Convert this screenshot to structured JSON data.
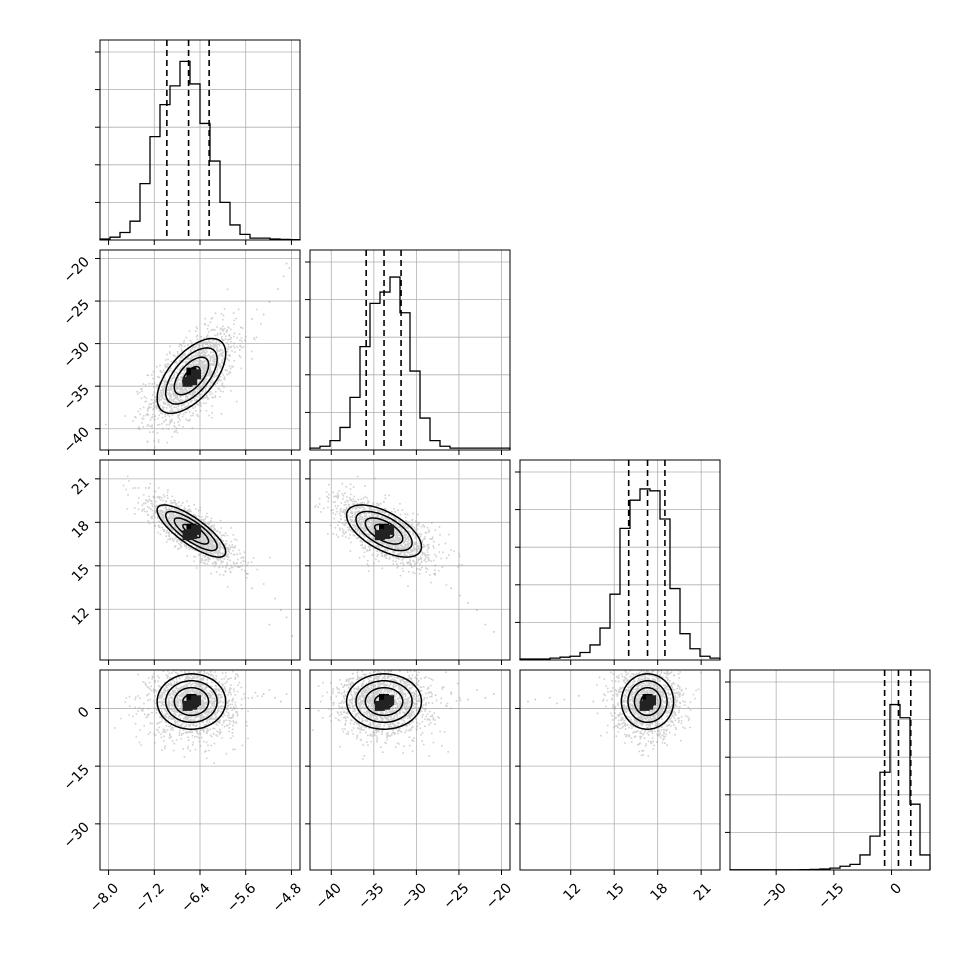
{
  "chart_data": {
    "type": "corner",
    "parameters": [
      {
        "range": [
          -8.15,
          -4.65
        ],
        "ticks": [
          -8.0,
          -7.2,
          -6.4,
          -5.6,
          -4.8
        ],
        "tick_labels": [
          "−8.0",
          "−7.2",
          "−6.4",
          "−5.6",
          "−4.8"
        ],
        "quantiles": [
          -6.98,
          -6.6,
          -6.24
        ],
        "hist_bins": [
          -8.15,
          -7.975,
          -7.8,
          -7.625,
          -7.45,
          -7.275,
          -7.1,
          -6.925,
          -6.75,
          -6.575,
          -6.4,
          -6.225,
          -6.05,
          -5.875,
          -5.7,
          -5.525,
          -5.35,
          -5.175,
          -5.0,
          -4.825,
          -4.65
        ],
        "hist_counts": [
          0.5,
          1.5,
          4,
          10,
          30,
          55,
          72,
          82,
          95,
          83,
          62,
          42,
          20,
          8,
          3,
          1,
          1,
          0.5,
          0.3,
          0.2
        ],
        "hist_max": 100
      },
      {
        "range": [
          -42.5,
          -19
        ],
        "ticks": [
          -40,
          -35,
          -30,
          -25,
          -20
        ],
        "tick_labels": [
          "−40",
          "−35",
          "−30",
          "−25",
          "−20"
        ],
        "quantiles": [
          -35.9,
          -33.8,
          -31.8
        ],
        "hist_bins": [
          -42.5,
          -41.325,
          -40.15,
          -38.975,
          -37.8,
          -36.625,
          -35.45,
          -34.275,
          -33.1,
          -31.925,
          -30.75,
          -29.575,
          -28.4,
          -27.225,
          -26.05,
          -24.875,
          -23.7,
          -22.525,
          -21.35,
          -20.175,
          -19.0
        ],
        "hist_counts": [
          1,
          2,
          5,
          12,
          28,
          55,
          78,
          84,
          92,
          73,
          42,
          17,
          5,
          2,
          1,
          1,
          1,
          1,
          1,
          1
        ],
        "hist_max": 100
      },
      {
        "range": [
          8.5,
          22.3
        ],
        "ticks": [
          12,
          15,
          18,
          21
        ],
        "tick_labels": [
          "12",
          "15",
          "18",
          "21"
        ],
        "quantiles": [
          16,
          17.3,
          18.5
        ],
        "hist_bins": [
          8.5,
          9.19,
          9.88,
          10.57,
          11.26,
          11.95,
          12.64,
          13.33,
          14.02,
          14.71,
          15.4,
          16.09,
          16.78,
          17.47,
          18.16,
          18.85,
          19.54,
          20.23,
          20.92,
          21.61,
          22.3
        ],
        "hist_counts": [
          0.5,
          0.5,
          0.5,
          1,
          1.5,
          2,
          4,
          8,
          17,
          35,
          70,
          85,
          91,
          90,
          75,
          38,
          14,
          6,
          2,
          1
        ],
        "hist_max": 100
      },
      {
        "range": [
          -42,
          10
        ],
        "ticks": [
          -30,
          -15,
          0
        ],
        "tick_labels": [
          "−30",
          "−15",
          "0"
        ],
        "quantiles": [
          -1.8,
          1.8,
          5
        ],
        "hist_bins": [
          -42,
          -39.4,
          -36.8,
          -34.2,
          -31.6,
          -29,
          -26.4,
          -23.8,
          -21.2,
          -18.6,
          -16,
          -13.4,
          -10.8,
          -8.2,
          -5.6,
          -3,
          -0.4,
          2.2,
          4.8,
          7.4,
          10
        ],
        "hist_counts": [
          0.1,
          0.1,
          0.1,
          0.1,
          0.1,
          0.1,
          0.1,
          0.2,
          0.3,
          0.5,
          1,
          2,
          3,
          8,
          18,
          52,
          88,
          81,
          35,
          8
        ],
        "hist_max": 100
      }
    ],
    "pairs": [
      {
        "row": 1,
        "col": 0,
        "center": [
          -6.55,
          -33.8
        ],
        "sigma": [
          0.3,
          2.2
        ],
        "rho": 0.6,
        "n_points": 1600,
        "outliers": [
          [
            -5.9,
            -29
          ],
          [
            -5.5,
            -27
          ],
          [
            -5.2,
            -25
          ],
          [
            -5.05,
            -23.5
          ],
          [
            -4.95,
            -22
          ],
          [
            -4.85,
            -21
          ],
          [
            -5.3,
            -26.5
          ],
          [
            -5.7,
            -28
          ],
          [
            -6,
            -29.5
          ],
          [
            -4.9,
            -20.5
          ]
        ]
      },
      {
        "row": 2,
        "col": 0,
        "center": [
          -6.55,
          17.4
        ],
        "sigma": [
          0.3,
          0.9
        ],
        "rho": -0.8,
        "n_points": 1600,
        "outliers": [
          [
            -5.6,
            14.5
          ],
          [
            -5.3,
            13.8
          ],
          [
            -5.1,
            12.8
          ],
          [
            -4.9,
            11.5
          ],
          [
            -4.8,
            10.2
          ],
          [
            -5,
            12
          ],
          [
            -5.5,
            13.5
          ],
          [
            -5.2,
            11
          ]
        ]
      },
      {
        "row": 3,
        "col": 0,
        "center": [
          -6.55,
          1.8
        ],
        "sigma": [
          0.3,
          3.6
        ],
        "rho": 0.0,
        "n_points": 1600,
        "outliers": [
          [
            -5.3,
            4
          ],
          [
            -5.1,
            3
          ],
          [
            -5,
            2
          ],
          [
            -4.9,
            4
          ],
          [
            -5.2,
            5
          ],
          [
            -5.5,
            3
          ]
        ]
      },
      {
        "row": 2,
        "col": 1,
        "center": [
          -33.8,
          17.4
        ],
        "sigma": [
          2.2,
          0.9
        ],
        "rho": -0.6,
        "n_points": 1600,
        "outliers": [
          [
            -28,
            14.5
          ],
          [
            -26,
            13.5
          ],
          [
            -24,
            12.5
          ],
          [
            -22,
            11
          ],
          [
            -21,
            10.5
          ],
          [
            -23,
            12
          ],
          [
            -25,
            13
          ]
        ]
      },
      {
        "row": 3,
        "col": 1,
        "center": [
          -33.8,
          1.8
        ],
        "sigma": [
          2.2,
          3.6
        ],
        "rho": 0.0,
        "n_points": 1600,
        "outliers": [
          [
            -26,
            4
          ],
          [
            -25,
            3
          ],
          [
            -24,
            2.5
          ],
          [
            -22,
            3
          ],
          [
            -21,
            4
          ],
          [
            -23,
            5
          ]
        ]
      },
      {
        "row": 3,
        "col": 2,
        "center": [
          17.3,
          1.8
        ],
        "sigma": [
          0.9,
          3.6
        ],
        "rho": 0.0,
        "n_points": 1600,
        "outliers": [
          [
            9.5,
            2.5
          ],
          [
            10.5,
            3
          ],
          [
            11.5,
            2.5
          ],
          [
            12.5,
            3.5
          ],
          [
            13.5,
            2
          ],
          [
            9,
            2
          ],
          [
            11,
            1.5
          ]
        ]
      }
    ],
    "contour_levels": [
      0.5,
      1.0,
      1.5,
      2.0
    ],
    "grid": true
  }
}
